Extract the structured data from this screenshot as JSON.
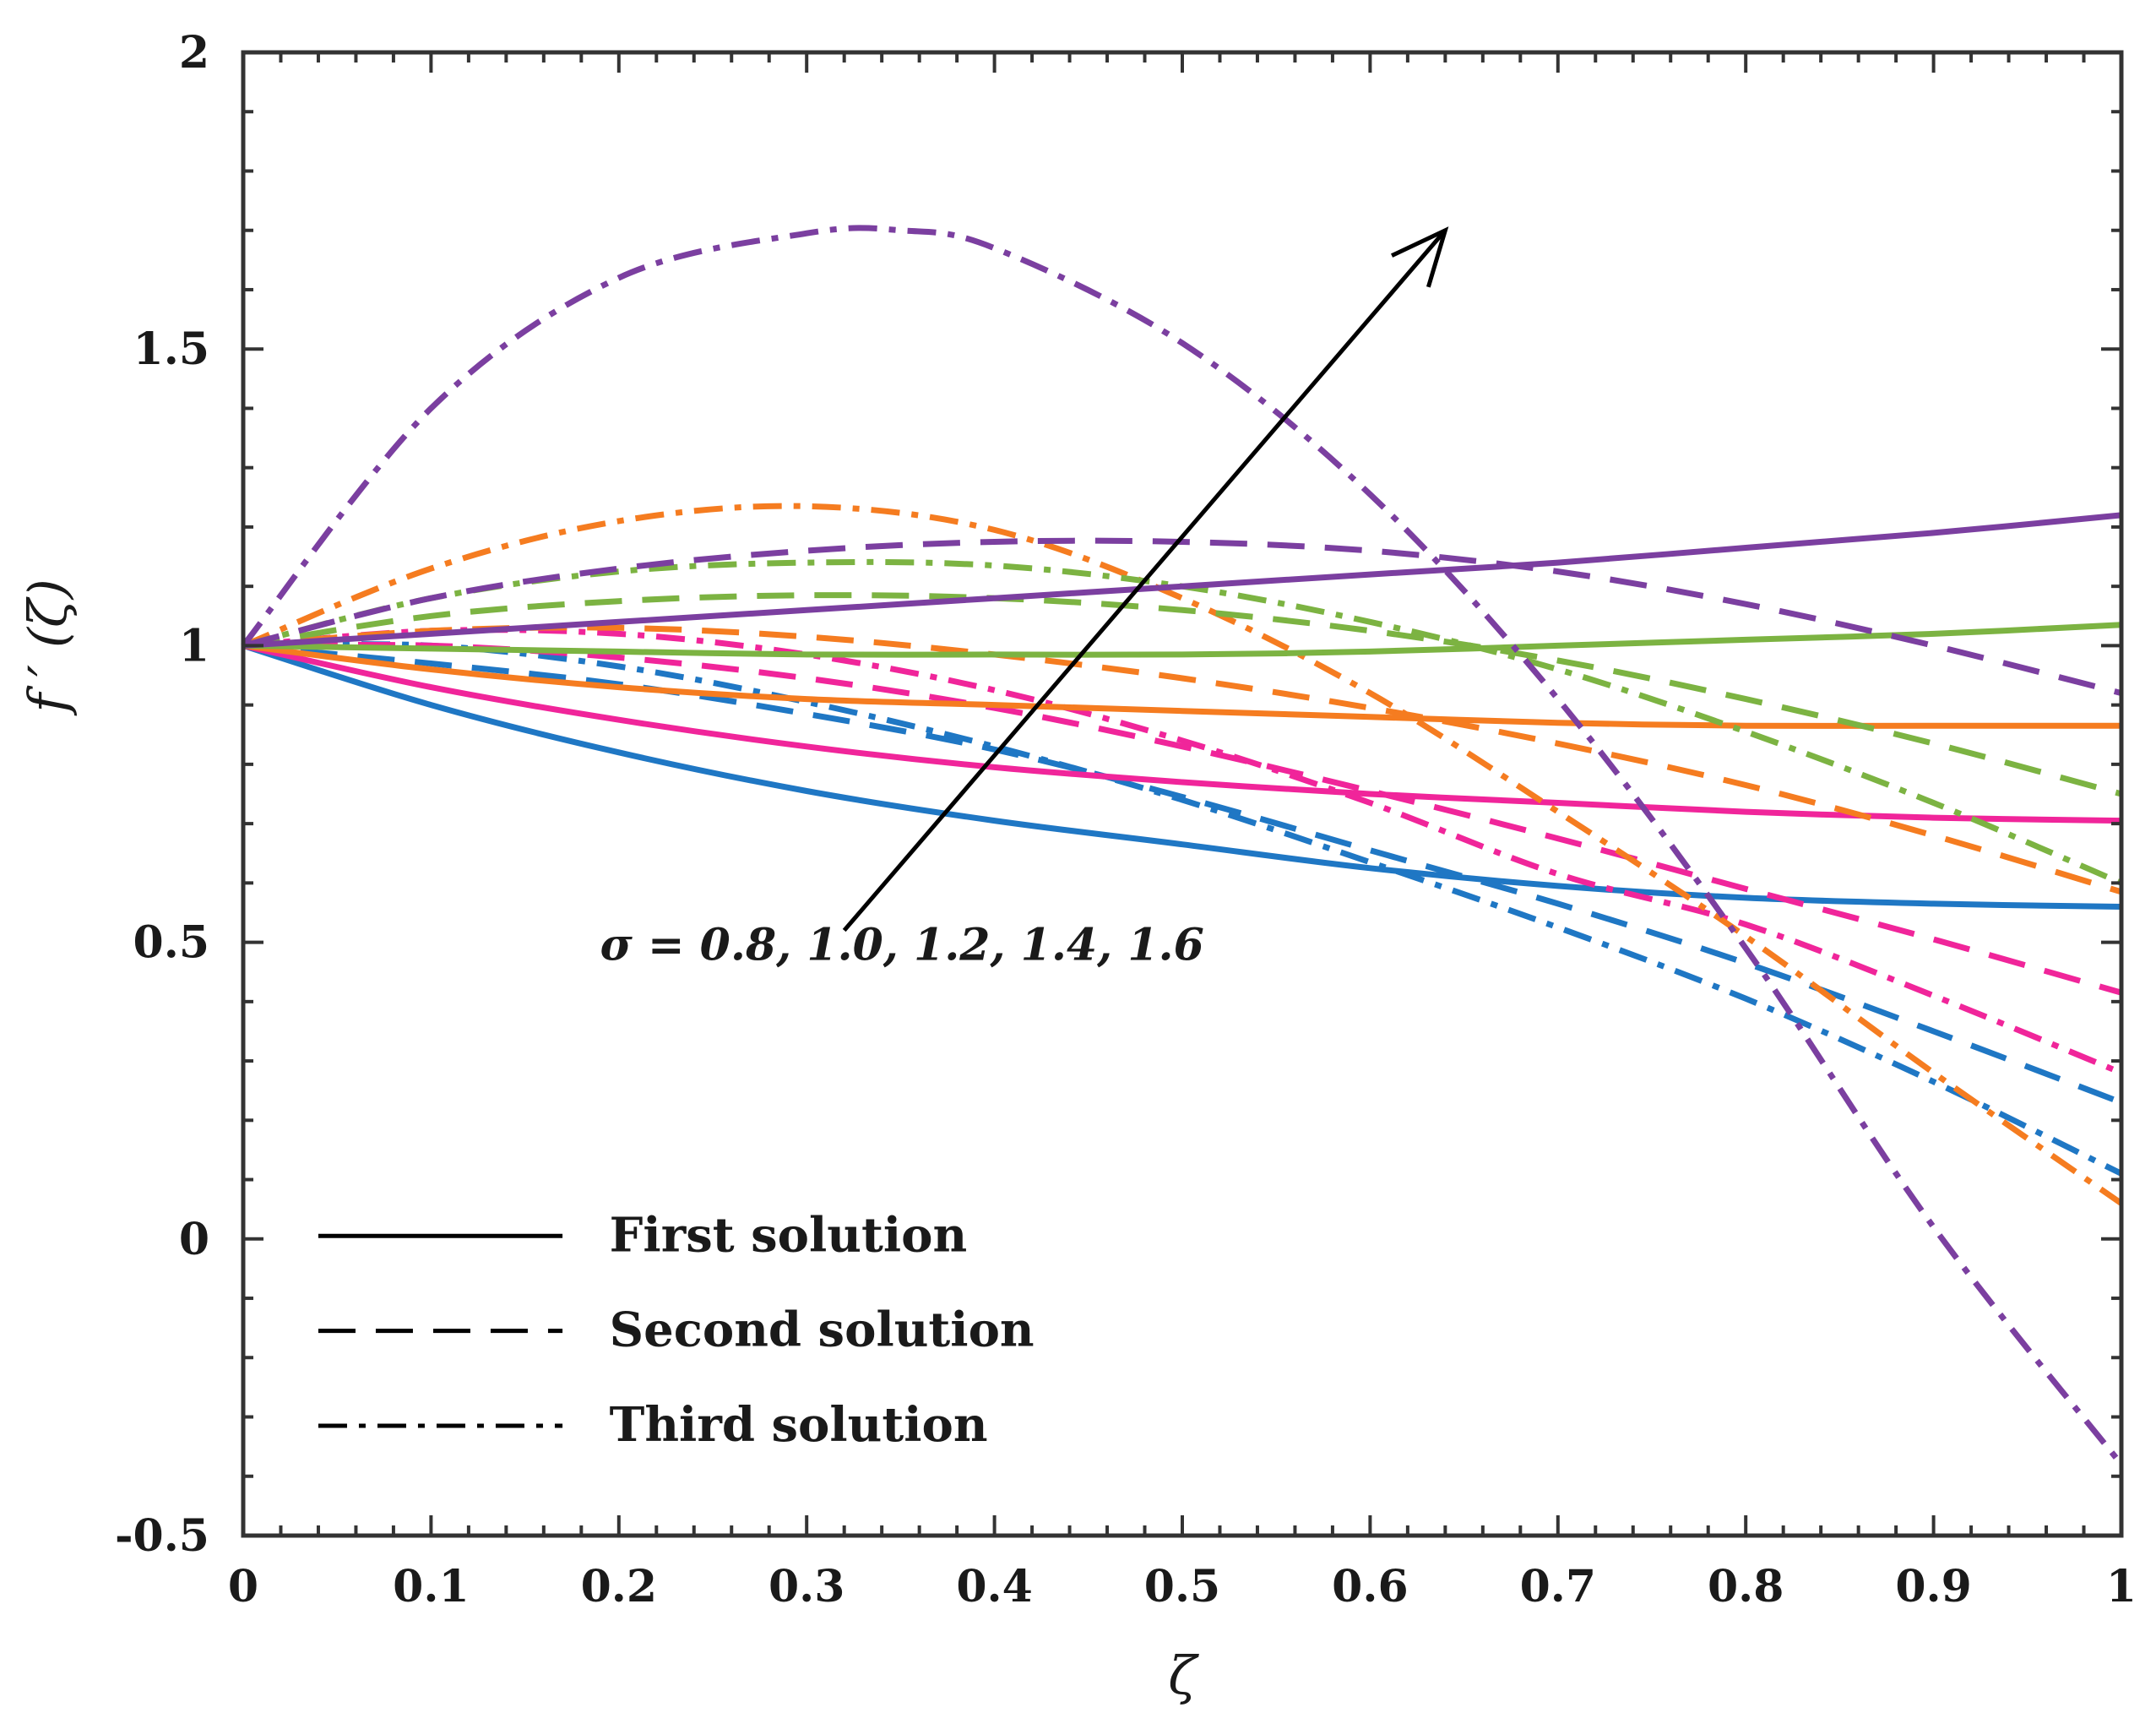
{
  "chart_data": {
    "type": "line",
    "title": "",
    "xlabel": "ζ",
    "ylabel": "f ′ (ζ)",
    "xlim": [
      0,
      1
    ],
    "ylim": [
      -0.5,
      2
    ],
    "x_ticks": [
      "0",
      "0.1",
      "0.2",
      "0.3",
      "0.4",
      "0.5",
      "0.6",
      "0.7",
      "0.8",
      "0.9",
      "1"
    ],
    "y_ticks": [
      "-0.5",
      "0",
      "0.5",
      "1",
      "1.5",
      "2"
    ],
    "grid": false,
    "legend_position": "bottom-left",
    "legend": [
      {
        "label": "First solution",
        "style": "solid"
      },
      {
        "label": "Second solution",
        "style": "dashed"
      },
      {
        "label": "Third solution",
        "style": "dashdot"
      }
    ],
    "annotation": {
      "text": "σ = 0.8, 1.0, 1.2, 1.4, 1.6",
      "arrow_from": [
        0.32,
        0.52
      ],
      "arrow_to": [
        0.64,
        1.7
      ]
    },
    "series": [
      {
        "name": "σ = 0.8, First solution",
        "sigma": 0.8,
        "solution": "First",
        "style": "solid",
        "color": "#1f77c4",
        "points": [
          [
            0,
            1
          ],
          [
            0.1,
            0.9
          ],
          [
            0.2,
            0.82
          ],
          [
            0.3,
            0.755
          ],
          [
            0.4,
            0.705
          ],
          [
            0.5,
            0.665
          ],
          [
            0.6,
            0.625
          ],
          [
            0.7,
            0.595
          ],
          [
            0.8,
            0.575
          ],
          [
            0.9,
            0.565
          ],
          [
            1.0,
            0.56
          ]
        ]
      },
      {
        "name": "σ = 0.8, Second solution",
        "sigma": 0.8,
        "solution": "Second",
        "style": "dashed",
        "color": "#1f77c4",
        "points": [
          [
            0,
            1
          ],
          [
            0.1,
            0.97
          ],
          [
            0.2,
            0.935
          ],
          [
            0.3,
            0.885
          ],
          [
            0.4,
            0.825
          ],
          [
            0.5,
            0.745
          ],
          [
            0.6,
            0.655
          ],
          [
            0.7,
            0.565
          ],
          [
            0.8,
            0.465
          ],
          [
            0.9,
            0.35
          ],
          [
            1.0,
            0.23
          ]
        ]
      },
      {
        "name": "σ = 0.8, Third solution",
        "sigma": 0.8,
        "solution": "Third",
        "style": "dashdot",
        "color": "#1f77c4",
        "points": [
          [
            0,
            1
          ],
          [
            0.1,
            1.0
          ],
          [
            0.2,
            0.965
          ],
          [
            0.3,
            0.905
          ],
          [
            0.4,
            0.83
          ],
          [
            0.5,
            0.74
          ],
          [
            0.6,
            0.635
          ],
          [
            0.7,
            0.525
          ],
          [
            0.8,
            0.405
          ],
          [
            0.9,
            0.265
          ],
          [
            1.0,
            0.11
          ]
        ]
      },
      {
        "name": "σ = 1.0, First solution",
        "sigma": 1.0,
        "solution": "First",
        "style": "solid",
        "color": "#f0259a",
        "points": [
          [
            0,
            1
          ],
          [
            0.1,
            0.93
          ],
          [
            0.2,
            0.875
          ],
          [
            0.3,
            0.83
          ],
          [
            0.4,
            0.795
          ],
          [
            0.5,
            0.77
          ],
          [
            0.6,
            0.75
          ],
          [
            0.7,
            0.735
          ],
          [
            0.8,
            0.72
          ],
          [
            0.9,
            0.71
          ],
          [
            1.0,
            0.705
          ]
        ]
      },
      {
        "name": "σ = 1.0, Second solution",
        "sigma": 1.0,
        "solution": "Second",
        "style": "dashed",
        "color": "#f0259a",
        "points": [
          [
            0,
            1
          ],
          [
            0.1,
            1.0
          ],
          [
            0.2,
            0.98
          ],
          [
            0.3,
            0.945
          ],
          [
            0.4,
            0.895
          ],
          [
            0.5,
            0.83
          ],
          [
            0.6,
            0.755
          ],
          [
            0.7,
            0.675
          ],
          [
            0.8,
            0.59
          ],
          [
            0.9,
            0.505
          ],
          [
            1.0,
            0.415
          ]
        ]
      },
      {
        "name": "σ = 1.0, Third solution",
        "sigma": 1.0,
        "solution": "Third",
        "style": "dashdot",
        "color": "#f0259a",
        "points": [
          [
            0,
            1
          ],
          [
            0.1,
            1.025
          ],
          [
            0.2,
            1.02
          ],
          [
            0.3,
            0.985
          ],
          [
            0.4,
            0.925
          ],
          [
            0.5,
            0.84
          ],
          [
            0.6,
            0.735
          ],
          [
            0.7,
            0.615
          ],
          [
            0.8,
            0.53
          ],
          [
            0.9,
            0.41
          ],
          [
            1.0,
            0.28
          ]
        ]
      },
      {
        "name": "σ = 1.2, First solution",
        "sigma": 1.2,
        "solution": "First",
        "style": "solid",
        "color": "#f57c20",
        "points": [
          [
            0,
            1
          ],
          [
            0.1,
            0.96
          ],
          [
            0.2,
            0.93
          ],
          [
            0.3,
            0.91
          ],
          [
            0.4,
            0.9
          ],
          [
            0.5,
            0.89
          ],
          [
            0.6,
            0.88
          ],
          [
            0.7,
            0.87
          ],
          [
            0.8,
            0.865
          ],
          [
            0.9,
            0.865
          ],
          [
            1.0,
            0.865
          ]
        ]
      },
      {
        "name": "σ = 1.2, Second solution",
        "sigma": 1.2,
        "solution": "Second",
        "style": "dashed",
        "color": "#f57c20",
        "points": [
          [
            0,
            1
          ],
          [
            0.1,
            1.025
          ],
          [
            0.2,
            1.03
          ],
          [
            0.3,
            1.015
          ],
          [
            0.4,
            0.985
          ],
          [
            0.5,
            0.945
          ],
          [
            0.6,
            0.895
          ],
          [
            0.7,
            0.835
          ],
          [
            0.8,
            0.765
          ],
          [
            0.9,
            0.68
          ],
          [
            1.0,
            0.585
          ]
        ]
      },
      {
        "name": "σ = 1.2, Third solution",
        "sigma": 1.2,
        "solution": "Third",
        "style": "dashdot",
        "color": "#f57c20",
        "points": [
          [
            0,
            1
          ],
          [
            0.1,
            1.13
          ],
          [
            0.2,
            1.21
          ],
          [
            0.3,
            1.235
          ],
          [
            0.4,
            1.195
          ],
          [
            0.5,
            1.08
          ],
          [
            0.6,
            0.92
          ],
          [
            0.7,
            0.72
          ],
          [
            0.8,
            0.51
          ],
          [
            0.9,
            0.28
          ],
          [
            1.0,
            0.06
          ]
        ]
      },
      {
        "name": "σ = 1.4, First solution",
        "sigma": 1.4,
        "solution": "First",
        "style": "solid",
        "color": "#7cb342",
        "points": [
          [
            0,
            1
          ],
          [
            0.1,
            0.995
          ],
          [
            0.2,
            0.99
          ],
          [
            0.3,
            0.985
          ],
          [
            0.4,
            0.985
          ],
          [
            0.5,
            0.985
          ],
          [
            0.6,
            0.99
          ],
          [
            0.7,
            1.0
          ],
          [
            0.8,
            1.01
          ],
          [
            0.9,
            1.02
          ],
          [
            1.0,
            1.035
          ]
        ]
      },
      {
        "name": "σ = 1.4, Second solution",
        "sigma": 1.4,
        "solution": "Second",
        "style": "dashed",
        "color": "#7cb342",
        "points": [
          [
            0,
            1
          ],
          [
            0.1,
            1.05
          ],
          [
            0.2,
            1.075
          ],
          [
            0.3,
            1.085
          ],
          [
            0.4,
            1.08
          ],
          [
            0.5,
            1.06
          ],
          [
            0.6,
            1.025
          ],
          [
            0.7,
            0.975
          ],
          [
            0.8,
            0.91
          ],
          [
            0.9,
            0.835
          ],
          [
            1.0,
            0.75
          ]
        ]
      },
      {
        "name": "σ = 1.4, Third solution",
        "sigma": 1.4,
        "solution": "Third",
        "style": "dashdot",
        "color": "#7cb342",
        "points": [
          [
            0,
            1
          ],
          [
            0.1,
            1.08
          ],
          [
            0.2,
            1.125
          ],
          [
            0.3,
            1.14
          ],
          [
            0.4,
            1.135
          ],
          [
            0.5,
            1.1
          ],
          [
            0.6,
            1.04
          ],
          [
            0.7,
            0.96
          ],
          [
            0.8,
            0.855
          ],
          [
            0.9,
            0.735
          ],
          [
            1.0,
            0.6
          ]
        ]
      },
      {
        "name": "σ = 1.6, First solution",
        "sigma": 1.6,
        "solution": "First",
        "style": "solid",
        "color": "#7b3fa0",
        "points": [
          [
            0,
            1
          ],
          [
            0.1,
            1.02
          ],
          [
            0.2,
            1.04
          ],
          [
            0.3,
            1.06
          ],
          [
            0.4,
            1.08
          ],
          [
            0.5,
            1.1
          ],
          [
            0.6,
            1.12
          ],
          [
            0.7,
            1.14
          ],
          [
            0.8,
            1.165
          ],
          [
            0.9,
            1.19
          ],
          [
            1.0,
            1.22
          ]
        ]
      },
      {
        "name": "σ = 1.6, Second solution",
        "sigma": 1.6,
        "solution": "Second",
        "style": "dashed",
        "color": "#7b3fa0",
        "points": [
          [
            0,
            1
          ],
          [
            0.1,
            1.08
          ],
          [
            0.2,
            1.13
          ],
          [
            0.3,
            1.16
          ],
          [
            0.4,
            1.175
          ],
          [
            0.5,
            1.175
          ],
          [
            0.6,
            1.16
          ],
          [
            0.7,
            1.125
          ],
          [
            0.8,
            1.07
          ],
          [
            0.9,
            1.0
          ],
          [
            1.0,
            0.92
          ]
        ]
      },
      {
        "name": "σ = 1.6, Third solution",
        "sigma": 1.6,
        "solution": "Third",
        "style": "dashdot",
        "color": "#7b3fa0",
        "points": [
          [
            0,
            1
          ],
          [
            0.1,
            1.4
          ],
          [
            0.2,
            1.62
          ],
          [
            0.3,
            1.695
          ],
          [
            0.35,
            1.7
          ],
          [
            0.4,
            1.67
          ],
          [
            0.5,
            1.51
          ],
          [
            0.6,
            1.255
          ],
          [
            0.7,
            0.91
          ],
          [
            0.8,
            0.49
          ],
          [
            0.9,
            0.02
          ],
          [
            1.0,
            -0.38
          ]
        ]
      }
    ]
  }
}
